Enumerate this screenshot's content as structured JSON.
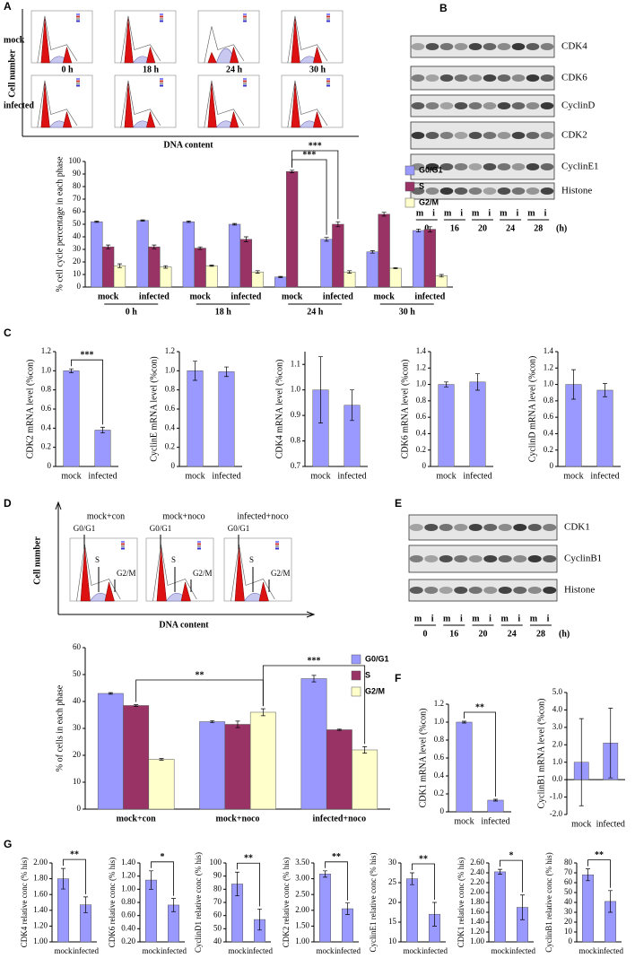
{
  "panel_labels": [
    "A",
    "B",
    "C",
    "D",
    "E",
    "F",
    "G"
  ],
  "flow_a": {
    "rows": [
      "mock",
      "infected"
    ],
    "times": [
      "0 h",
      "18 h",
      "24 h",
      "30 h"
    ],
    "y_label": "Cell number",
    "x_label": "DNA content"
  },
  "blot_b": {
    "bands": [
      "CDK4",
      "CDK6",
      "CyclinD",
      "CDK2",
      "CyclinE1",
      "Histone"
    ],
    "lanes": [
      "m",
      "i"
    ],
    "times": [
      "0",
      "16",
      "20",
      "24",
      "28"
    ],
    "unit": "(h)"
  },
  "flow_d": {
    "conditions": [
      "mock+con",
      "mock+noco",
      "infected+noco"
    ],
    "peaks": [
      "G0/G1",
      "S",
      "G2/M"
    ],
    "y_label": "Cell number",
    "x_label": "DNA content"
  },
  "blot_e": {
    "bands": [
      "CDK1",
      "CyclinB1",
      "Histone"
    ],
    "lanes": [
      "m",
      "i"
    ],
    "times": [
      "0",
      "16",
      "20",
      "24",
      "28"
    ],
    "unit": "(h)"
  },
  "chart_data": [
    {
      "type": "bar",
      "y_label": "% cell cycle percentage in each phase",
      "categories": [
        "mock",
        "infected",
        "mock",
        "infected",
        "mock",
        "infected",
        "mock",
        "infected"
      ],
      "groups": [
        "0 h",
        "18 h",
        "24 h",
        "30 h"
      ],
      "series": [
        {
          "name": "G0/G1",
          "color": "#9999ff",
          "values": [
            52,
            53,
            52,
            50,
            8,
            38,
            28,
            45
          ],
          "errors": [
            0.5,
            0.5,
            0.6,
            0.6,
            0.5,
            1.5,
            1,
            1.2
          ]
        },
        {
          "name": "S",
          "color": "#993366",
          "values": [
            32,
            32,
            31,
            38,
            92,
            50,
            58,
            46
          ],
          "errors": [
            1.5,
            1.5,
            1,
            2,
            1,
            2,
            1.5,
            2
          ]
        },
        {
          "name": "G2/M",
          "color": "#ffffcc",
          "values": [
            17,
            16,
            17,
            12,
            0,
            12,
            15,
            9
          ],
          "errors": [
            1.5,
            1,
            0.5,
            1,
            0,
            1,
            0.5,
            1
          ]
        }
      ],
      "ylim": [
        0,
        100
      ],
      "yticks": [
        0,
        10,
        20,
        30,
        40,
        50,
        60,
        70,
        80,
        90,
        100
      ],
      "annotations": [
        "***",
        "***"
      ]
    },
    {
      "type": "bar",
      "y_label": "CDK2 mRNA level (%con)",
      "categories": [
        "mock",
        "infected"
      ],
      "values": [
        1.0,
        0.38
      ],
      "errors": [
        0.02,
        0.03
      ],
      "color": "#9999ff",
      "ylim": [
        0,
        1.2
      ],
      "yticks": [
        0,
        0.2,
        0.4,
        0.6,
        0.8,
        {
          "value": 1,
          "label": "1.0"
        },
        1.2
      ],
      "annotations": [
        "***"
      ]
    },
    {
      "type": "bar",
      "y_label": "CyclinE mRNA level (%con)",
      "categories": [
        "mock",
        "infected"
      ],
      "values": [
        1.0,
        0.99
      ],
      "errors": [
        0.1,
        0.05
      ],
      "color": "#9999ff",
      "ylim": [
        0,
        1.2
      ],
      "yticks": [
        0,
        0.2,
        0.4,
        0.6,
        0.8,
        {
          "value": 1,
          "label": "1.0"
        },
        1.2
      ]
    },
    {
      "type": "bar",
      "y_label": "CDK4 mRNA level (%con)",
      "categories": [
        "mock",
        "infected"
      ],
      "values": [
        1.0,
        0.94
      ],
      "errors": [
        0.13,
        0.06
      ],
      "color": "#9999ff",
      "ylim": [
        0.7,
        1.15
      ],
      "yticks": [
        0.7,
        0.8,
        0.9,
        {
          "value": 1,
          "label": "1.0"
        },
        1.1
      ]
    },
    {
      "type": "bar",
      "y_label": "CDK6 mRNA level (%con)",
      "categories": [
        "mock",
        "infected"
      ],
      "values": [
        1.0,
        1.03
      ],
      "errors": [
        0.03,
        0.1
      ],
      "color": "#9999ff",
      "ylim": [
        0,
        1.4
      ],
      "yticks": [
        0,
        0.2,
        0.4,
        0.6,
        0.8,
        {
          "value": 1,
          "label": "1.0"
        },
        1.2,
        1.4
      ]
    },
    {
      "type": "bar",
      "y_label": "CyclinD mRNA level (%con)",
      "categories": [
        "mock",
        "infected"
      ],
      "values": [
        1.0,
        0.93
      ],
      "errors": [
        0.18,
        0.08
      ],
      "color": "#9999ff",
      "ylim": [
        0,
        1.4
      ],
      "yticks": [
        0,
        0.2,
        0.4,
        0.6,
        0.8,
        {
          "value": 1,
          "label": "1.0"
        },
        1.2,
        1.4
      ]
    },
    {
      "type": "bar",
      "y_label": "% of cells in each phase",
      "categories": [
        "mock+con",
        "mock+noco",
        "infected+noco"
      ],
      "series": [
        {
          "name": "G0/G1",
          "color": "#9999ff",
          "values": [
            43,
            32.5,
            48.5
          ],
          "errors": [
            0.3,
            0.4,
            1.2
          ]
        },
        {
          "name": "S",
          "color": "#993366",
          "values": [
            38.5,
            31.5,
            29.5
          ],
          "errors": [
            0.3,
            1.2,
            0.2
          ]
        },
        {
          "name": "G2/M",
          "color": "#ffffcc",
          "values": [
            18.5,
            36,
            22
          ],
          "errors": [
            0.3,
            1.3,
            1.2
          ]
        }
      ],
      "ylim": [
        0,
        60
      ],
      "yticks": [
        0,
        10,
        20,
        30,
        40,
        50,
        60
      ],
      "annotations": [
        "**",
        "***"
      ]
    },
    {
      "type": "bar",
      "y_label": "CDK1 mRNA level (%con)",
      "categories": [
        "mock",
        "infected"
      ],
      "values": [
        1.0,
        0.13
      ],
      "errors": [
        0.01,
        0.01
      ],
      "color": "#9999ff",
      "ylim": [
        0,
        1.2
      ],
      "yticks": [
        0,
        0.2,
        0.4,
        0.6,
        0.8,
        {
          "value": 1,
          "label": "1.0"
        },
        1.2
      ],
      "annotations": [
        "**"
      ]
    },
    {
      "type": "bar",
      "y_label": "CyclinB1 mRNA level (%con)",
      "categories": [
        "mock",
        "infected"
      ],
      "values": [
        1.0,
        2.1
      ],
      "errors": [
        2.5,
        2.0
      ],
      "color": "#9999ff",
      "ylim": [
        -2,
        5
      ],
      "yticks": [
        {
          "value": -2,
          "label": "-2.0"
        },
        {
          "value": -1,
          "label": "-1.0"
        },
        {
          "value": 0,
          "label": "0.0"
        },
        {
          "value": 1,
          "label": "1.0"
        },
        {
          "value": 2,
          "label": "2.0"
        },
        {
          "value": 3,
          "label": "3.0"
        },
        {
          "value": 4,
          "label": "4.0"
        },
        {
          "value": 5,
          "label": "5.0"
        }
      ]
    },
    {
      "type": "bar",
      "y_label": "CDK4 relative conc (% his)",
      "categories": [
        "mock",
        "infected"
      ],
      "values": [
        1.8,
        1.47
      ],
      "errors": [
        0.13,
        0.1
      ],
      "color": "#9999ff",
      "ylim": [
        1,
        2
      ],
      "yticks": [
        {
          "value": 1,
          "label": "1.00"
        },
        {
          "value": 1.2,
          "label": "1.20"
        },
        {
          "value": 1.4,
          "label": "1.40"
        },
        {
          "value": 1.6,
          "label": "1.60"
        },
        {
          "value": 1.8,
          "label": "1.80"
        },
        {
          "value": 2,
          "label": "2.00"
        }
      ],
      "annotations": [
        "**"
      ]
    },
    {
      "type": "bar",
      "y_label": "CDK6 relative conc (% his)",
      "categories": [
        "mock",
        "infected"
      ],
      "values": [
        1.14,
        0.76
      ],
      "errors": [
        0.14,
        0.1
      ],
      "color": "#9999ff",
      "ylim": [
        0.2,
        1.4
      ],
      "yticks": [
        {
          "value": 0.2,
          "label": "0.20"
        },
        {
          "value": 0.4,
          "label": "0.40"
        },
        {
          "value": 0.6,
          "label": "0.60"
        },
        {
          "value": 0.8,
          "label": "0.80"
        },
        {
          "value": 1,
          "label": "1.00"
        },
        {
          "value": 1.2,
          "label": "1.20"
        },
        {
          "value": 1.4,
          "label": "1.40"
        }
      ],
      "annotations": [
        "*"
      ]
    },
    {
      "type": "bar",
      "y_label": "CyclinD1 relative conc (% his)",
      "categories": [
        "mock",
        "infected"
      ],
      "values": [
        84,
        57
      ],
      "errors": [
        9,
        8
      ],
      "color": "#9999ff",
      "ylim": [
        40,
        100
      ],
      "yticks": [
        40,
        50,
        60,
        70,
        80,
        90,
        100
      ],
      "annotations": [
        "**"
      ]
    },
    {
      "type": "bar",
      "y_label": "CDK2 relative conc (% his)",
      "categories": [
        "mock",
        "infected"
      ],
      "values": [
        3.15,
        2.05
      ],
      "errors": [
        0.1,
        0.18
      ],
      "color": "#9999ff",
      "ylim": [
        1,
        3.5
      ],
      "yticks": [
        {
          "value": 1,
          "label": "1.00"
        },
        {
          "value": 1.5,
          "label": "1.50"
        },
        {
          "value": 2,
          "label": "2.00"
        },
        {
          "value": 2.5,
          "label": "2.50"
        },
        {
          "value": 3,
          "label": "3.00"
        },
        {
          "value": 3.5,
          "label": "3.50"
        }
      ],
      "annotations": [
        "**"
      ]
    },
    {
      "type": "bar",
      "y_label": "CyclinE1 relative conc (% his)",
      "categories": [
        "mock",
        "infected"
      ],
      "values": [
        26,
        17
      ],
      "errors": [
        1.5,
        3
      ],
      "color": "#9999ff",
      "ylim": [
        10,
        30
      ],
      "yticks": [
        10,
        15,
        20,
        25,
        30
      ],
      "annotations": [
        "**"
      ]
    },
    {
      "type": "bar",
      "y_label": "CDK1 relative conc (% his)",
      "categories": [
        "mock",
        "infected"
      ],
      "values": [
        2.42,
        1.7
      ],
      "errors": [
        0.05,
        0.25
      ],
      "color": "#9999ff",
      "ylim": [
        1,
        2.6
      ],
      "yticks": [
        {
          "value": 1,
          "label": "1.00"
        },
        {
          "value": 1.2,
          "label": "1.20"
        },
        {
          "value": 1.4,
          "label": "1.40"
        },
        {
          "value": 1.6,
          "label": "1.60"
        },
        {
          "value": 1.8,
          "label": "1.80"
        },
        {
          "value": 2,
          "label": "2.00"
        },
        {
          "value": 2.2,
          "label": "2.20"
        },
        {
          "value": 2.4,
          "label": "2.40"
        },
        {
          "value": 2.6,
          "label": "2.60"
        }
      ],
      "annotations": [
        "*"
      ]
    },
    {
      "type": "bar",
      "y_label": "CyclinB1 relative conc (% his)",
      "categories": [
        "mock",
        "infected"
      ],
      "values": [
        68,
        41
      ],
      "errors": [
        6,
        11
      ],
      "color": "#9999ff",
      "ylim": [
        0,
        80
      ],
      "yticks": [
        0,
        10,
        20,
        30,
        40,
        50,
        60,
        70,
        80
      ],
      "annotations": [
        "**"
      ]
    }
  ]
}
